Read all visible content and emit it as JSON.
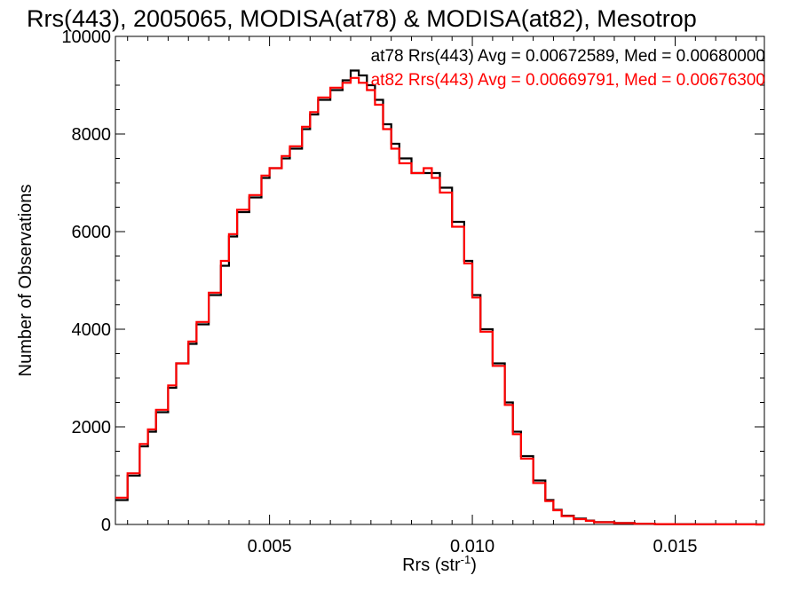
{
  "chart_data": {
    "type": "line",
    "title": "Rrs(443), 2005065, MODISA(at78) & MODISA(at82), Mesotrop",
    "xlabel": "Rrs (str",
    "xlabel_sup": "-1",
    "xlabel_close": ")",
    "ylabel": "Number of Observations",
    "xlim": [
      0.0012,
      0.0172
    ],
    "ylim": [
      0,
      10000
    ],
    "xticks": [
      0.005,
      0.01,
      0.015
    ],
    "xtick_labels": [
      "0.005",
      "0.010",
      "0.015"
    ],
    "yticks": [
      0,
      2000,
      4000,
      6000,
      8000,
      10000
    ],
    "ytick_labels": [
      "0",
      "2000",
      "4000",
      "6000",
      "8000",
      "10000"
    ],
    "grid": false,
    "line_style": "step",
    "annotations": [
      {
        "text": "at78 Rrs(443) Avg = 0.00672589, Med = 0.00680000",
        "color": "#000000"
      },
      {
        "text": "at82 Rrs(443) Avg = 0.00669791, Med = 0.00676300",
        "color": "#ff0000"
      }
    ],
    "series": [
      {
        "color": "#000000",
        "x": [
          0.0012,
          0.0015,
          0.0018,
          0.002,
          0.0022,
          0.0025,
          0.0027,
          0.003,
          0.0032,
          0.0035,
          0.0038,
          0.004,
          0.0042,
          0.0045,
          0.0048,
          0.005,
          0.0053,
          0.0055,
          0.0058,
          0.006,
          0.0062,
          0.0065,
          0.0068,
          0.007,
          0.0072,
          0.0074,
          0.0076,
          0.0078,
          0.008,
          0.0082,
          0.0085,
          0.0088,
          0.009,
          0.0092,
          0.0095,
          0.0098,
          0.01,
          0.0102,
          0.0105,
          0.0108,
          0.011,
          0.0112,
          0.0115,
          0.0118,
          0.012,
          0.0122,
          0.0125,
          0.0128,
          0.013,
          0.0135,
          0.014,
          0.0145,
          0.015,
          0.0155,
          0.016,
          0.0165,
          0.017,
          0.0172
        ],
        "y": [
          500,
          1000,
          1600,
          1900,
          2300,
          2800,
          3300,
          3700,
          4100,
          4700,
          5300,
          5900,
          6400,
          6700,
          7100,
          7300,
          7500,
          7700,
          8100,
          8400,
          8700,
          8900,
          9100,
          9300,
          9200,
          9000,
          8700,
          8200,
          7800,
          7500,
          7200,
          7200,
          7200,
          6900,
          6200,
          5400,
          4700,
          4000,
          3300,
          2500,
          1900,
          1400,
          900,
          500,
          300,
          180,
          120,
          80,
          50,
          30,
          15,
          8,
          5,
          3,
          2,
          1,
          0,
          0
        ]
      },
      {
        "color": "#ff0000",
        "x": [
          0.0012,
          0.0015,
          0.0018,
          0.002,
          0.0022,
          0.0025,
          0.0027,
          0.003,
          0.0032,
          0.0035,
          0.0038,
          0.004,
          0.0042,
          0.0045,
          0.0048,
          0.005,
          0.0053,
          0.0055,
          0.0058,
          0.006,
          0.0062,
          0.0065,
          0.0068,
          0.007,
          0.0072,
          0.0074,
          0.0076,
          0.0078,
          0.008,
          0.0082,
          0.0085,
          0.0088,
          0.009,
          0.0092,
          0.0095,
          0.0098,
          0.01,
          0.0102,
          0.0105,
          0.0108,
          0.011,
          0.0112,
          0.0115,
          0.0118,
          0.012,
          0.0122,
          0.0125,
          0.0128,
          0.013,
          0.0135,
          0.014,
          0.0145,
          0.015,
          0.0155,
          0.016,
          0.0165,
          0.017,
          0.0172
        ],
        "y": [
          550,
          1050,
          1650,
          1950,
          2350,
          2850,
          3300,
          3750,
          4150,
          4750,
          5400,
          5950,
          6450,
          6750,
          7150,
          7300,
          7550,
          7750,
          8150,
          8450,
          8750,
          8950,
          9050,
          9150,
          9050,
          8900,
          8600,
          8100,
          7700,
          7400,
          7200,
          7300,
          7100,
          6800,
          6100,
          5350,
          4650,
          3950,
          3250,
          2450,
          1850,
          1350,
          850,
          480,
          290,
          170,
          110,
          75,
          45,
          28,
          14,
          7,
          4,
          3,
          2,
          1,
          0,
          0
        ]
      }
    ]
  }
}
